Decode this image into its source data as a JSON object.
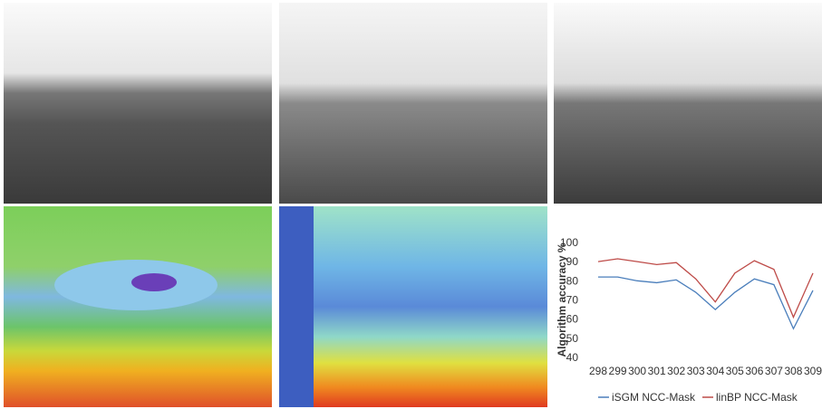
{
  "chart_data": {
    "type": "line",
    "y_label": "Algorithm accuracy %",
    "categories": [
      "298",
      "299",
      "300",
      "301",
      "302",
      "303",
      "304",
      "305",
      "306",
      "307",
      "308",
      "309"
    ],
    "series": [
      {
        "name": "iSGM NCC-Mask",
        "color": "#4a7ebb",
        "values": [
          82,
          82,
          80,
          79,
          80.5,
          74,
          65,
          74,
          81,
          78,
          55,
          75
        ]
      },
      {
        "name": "linBP NCC-Mask",
        "color": "#be4b48",
        "values": [
          90,
          91.5,
          90,
          88.5,
          89.5,
          81,
          69,
          84,
          90.5,
          86,
          61,
          84
        ]
      }
    ],
    "ylim": [
      40,
      100
    ],
    "yticks": [
      40,
      50,
      60,
      70,
      80,
      90,
      100
    ],
    "grid": false,
    "legend": "bottom"
  }
}
